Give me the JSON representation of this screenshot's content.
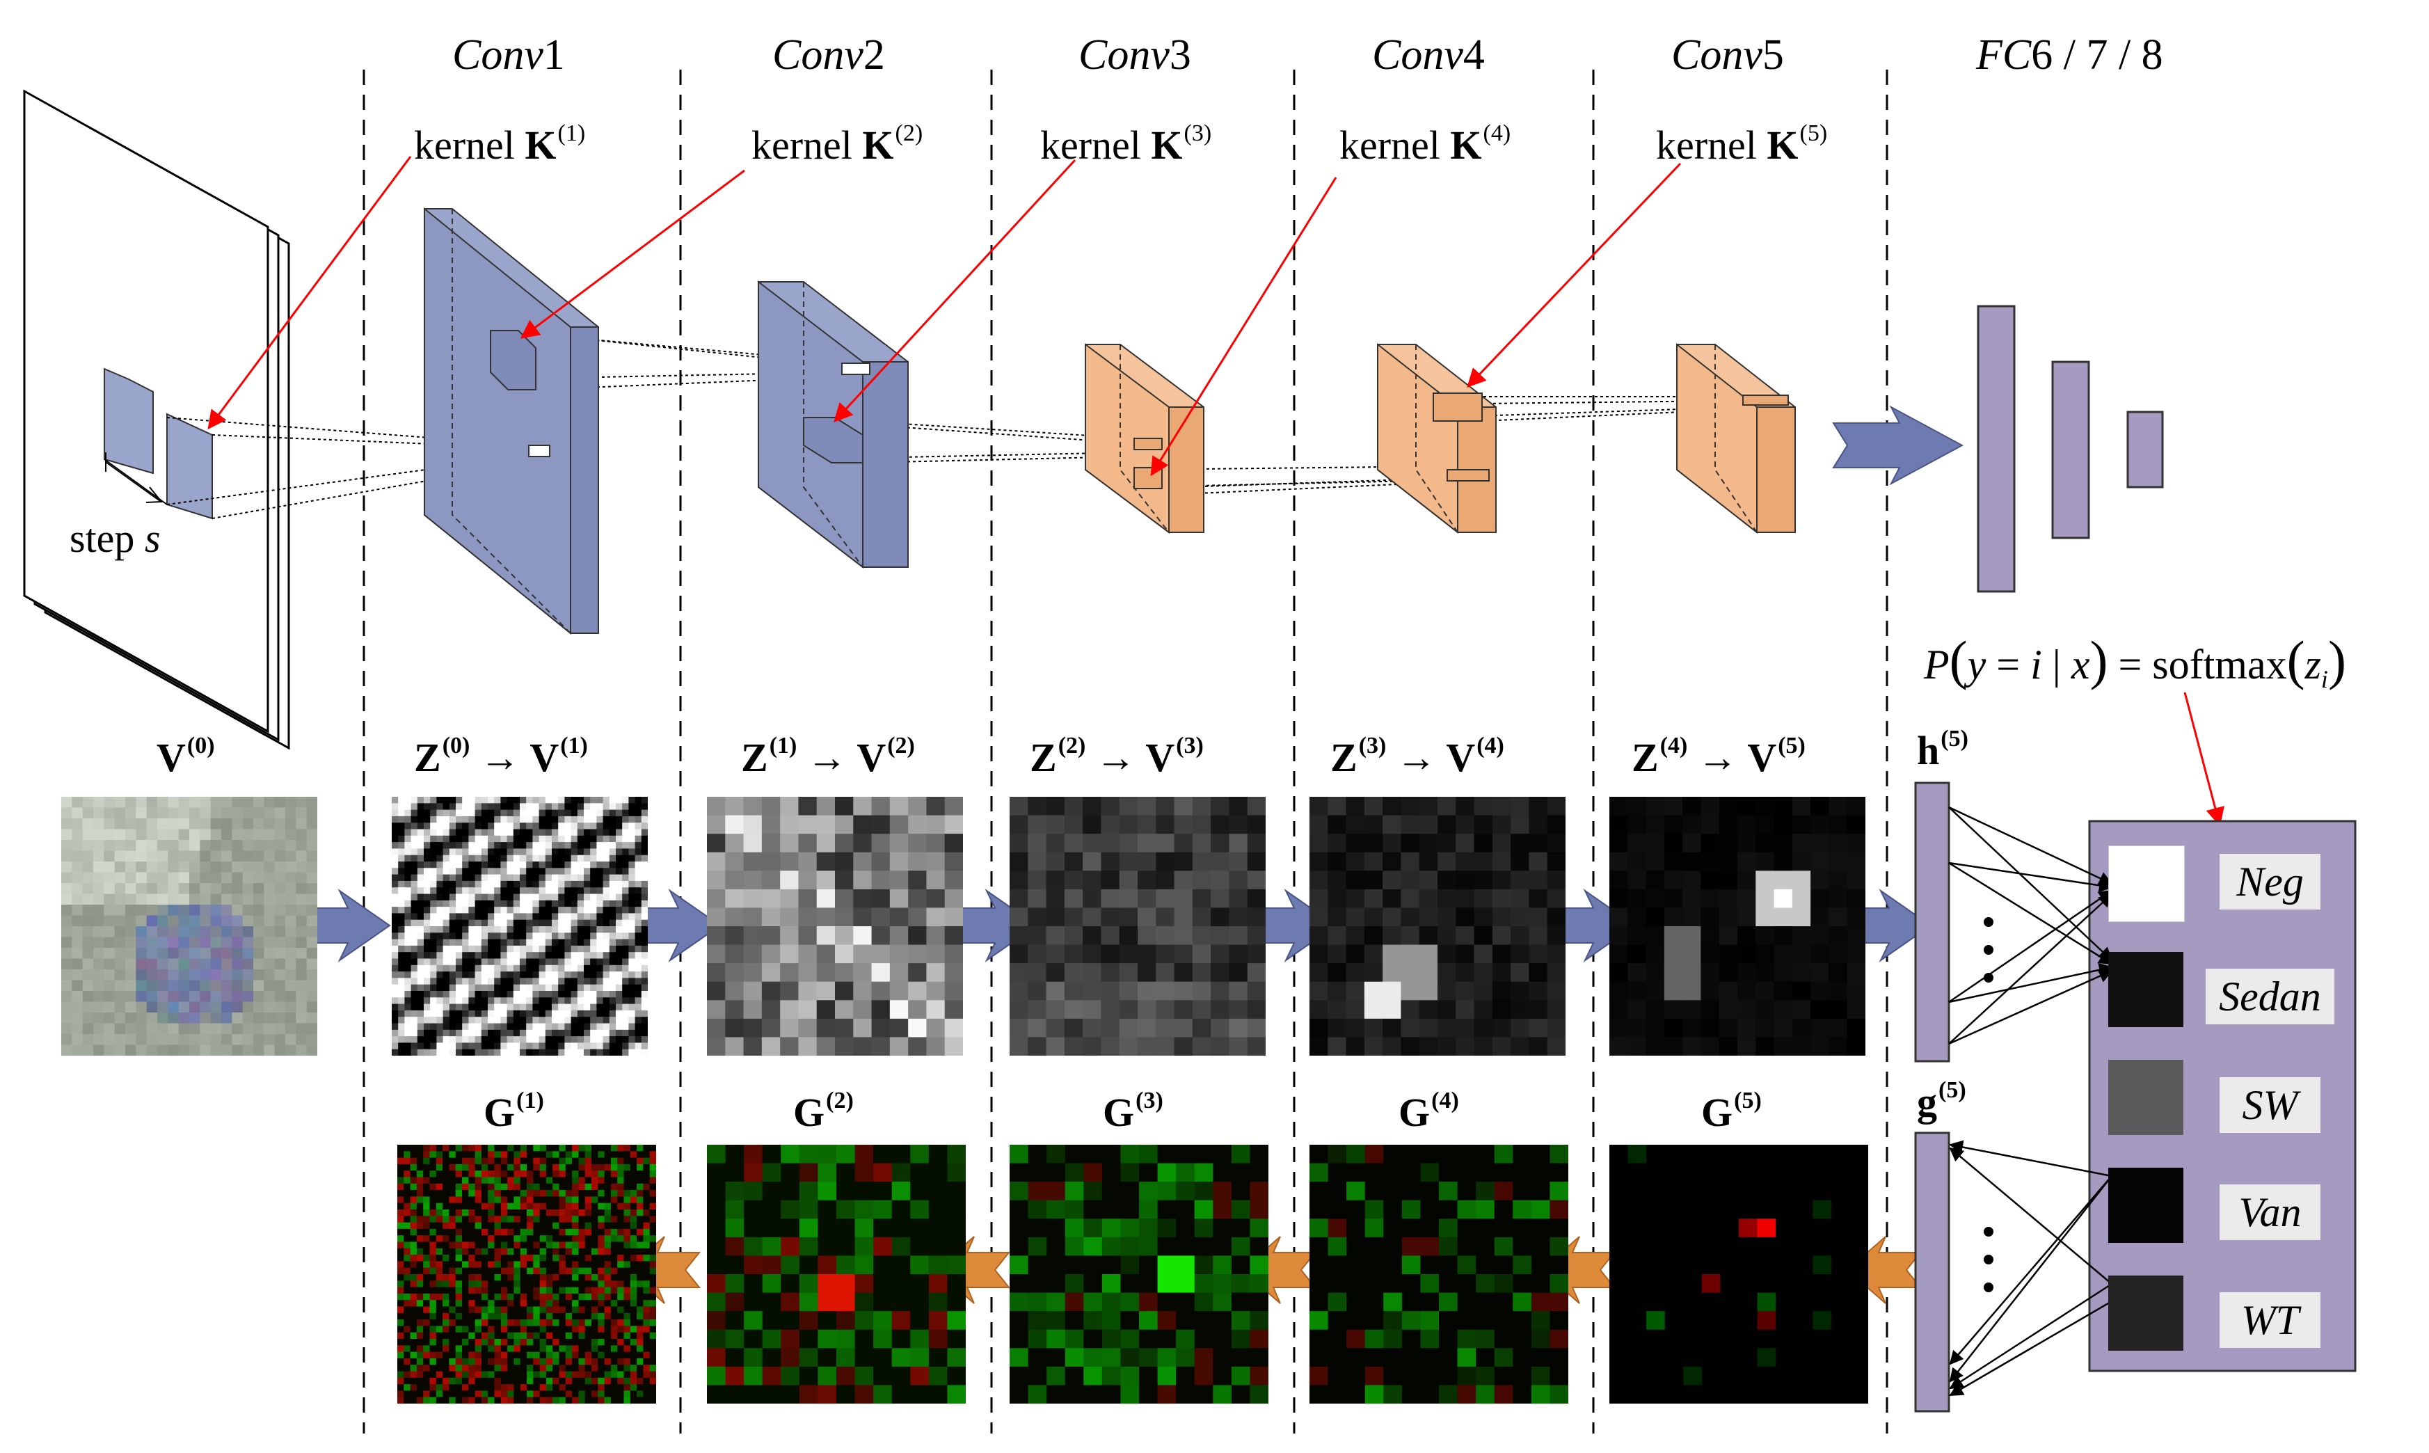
{
  "stages": {
    "conv1": {
      "title": "Conv",
      "num": "1"
    },
    "conv2": {
      "title": "Conv",
      "num": "2"
    },
    "conv3": {
      "title": "Conv",
      "num": "3"
    },
    "conv4": {
      "title": "Conv",
      "num": "4"
    },
    "conv5": {
      "title": "Conv",
      "num": "5"
    },
    "fc": {
      "title": "FC",
      "num": "6 / 7 / 8"
    }
  },
  "kernels": [
    {
      "word": "kernel",
      "sym": "K",
      "sup": "(1)"
    },
    {
      "word": "kernel",
      "sym": "K",
      "sup": "(2)"
    },
    {
      "word": "kernel",
      "sym": "K",
      "sup": "(3)"
    },
    {
      "word": "kernel",
      "sym": "K",
      "sup": "(4)"
    },
    {
      "word": "kernel",
      "sym": "K",
      "sup": "(5)"
    }
  ],
  "step_label": {
    "word": "step",
    "sym": "s"
  },
  "feature_maps": [
    {
      "label": "V",
      "sup": "(0)"
    },
    {
      "from": "Z",
      "from_sup": "(0)",
      "arrow": "→",
      "to": "V",
      "to_sup": "(1)"
    },
    {
      "from": "Z",
      "from_sup": "(1)",
      "arrow": "→",
      "to": "V",
      "to_sup": "(2)"
    },
    {
      "from": "Z",
      "from_sup": "(2)",
      "arrow": "→",
      "to": "V",
      "to_sup": "(3)"
    },
    {
      "from": "Z",
      "from_sup": "(3)",
      "arrow": "→",
      "to": "V",
      "to_sup": "(4)"
    },
    {
      "from": "Z",
      "from_sup": "(4)",
      "arrow": "→",
      "to": "V",
      "to_sup": "(5)"
    }
  ],
  "h_label": {
    "sym": "h",
    "sup": "(5)"
  },
  "g_label": {
    "sym": "g",
    "sup": "(5)"
  },
  "gradients": [
    {
      "label": "G",
      "sup": "(1)"
    },
    {
      "label": "G",
      "sup": "(2)"
    },
    {
      "label": "G",
      "sup": "(3)"
    },
    {
      "label": "G",
      "sup": "(4)"
    },
    {
      "label": "G",
      "sup": "(5)"
    }
  ],
  "formula": {
    "p": "P",
    "open": "(",
    "y": "y",
    "eq": " = ",
    "i": "i",
    "bar": " | ",
    "x": "x",
    "close": ")",
    "eq2": " = softmax",
    "open2": "(",
    "z": "z",
    "sub": "i",
    "close2": ")"
  },
  "classes": [
    {
      "name": "Neg",
      "color": "#ffffff"
    },
    {
      "name": "Sedan",
      "color": "#111111"
    },
    {
      "name": "SW",
      "color": "#5a5a5a"
    },
    {
      "name": "Van",
      "color": "#050505"
    },
    {
      "name": "WT",
      "color": "#232323"
    }
  ],
  "colors": {
    "blue_block": "#9aa5cc",
    "orange_block": "#f5c39c",
    "fc_bar": "#a59ac0",
    "class_panel": "#a59ac0",
    "flow_arrow_blue": "#6e7bb0",
    "flow_arrow_orange": "#dd8a3a",
    "pointer_red": "#ff0000"
  }
}
